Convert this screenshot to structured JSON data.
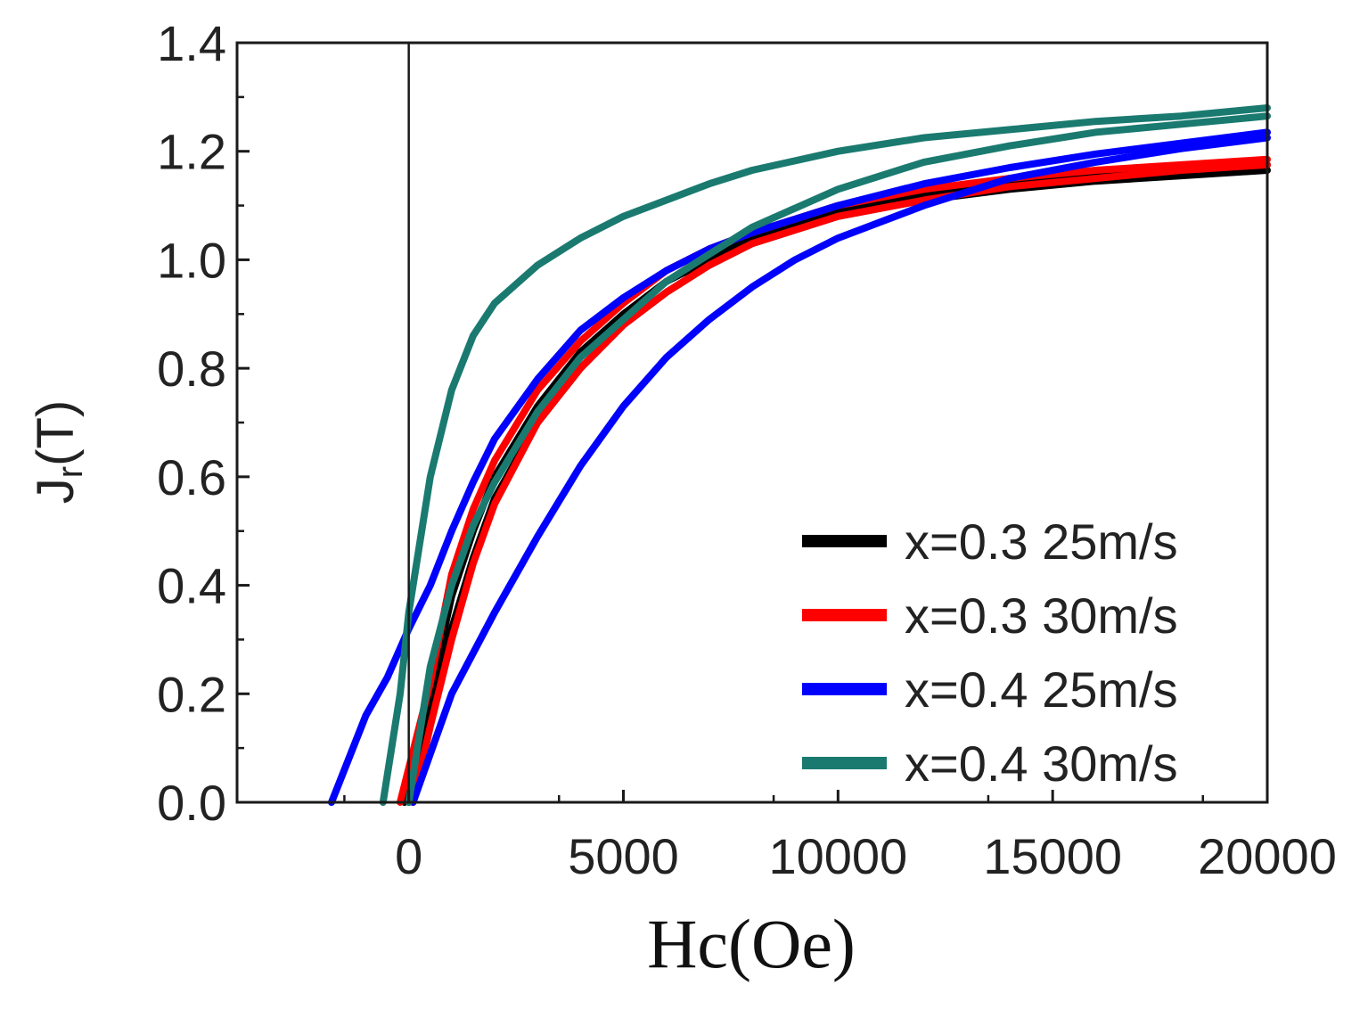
{
  "chart_data": {
    "type": "line",
    "title": "",
    "xlabel": "Hc(Oe)",
    "ylabel_main": "J",
    "ylabel_sub": "r",
    "ylabel_tail": "(T)",
    "xlim": [
      -4000,
      20000
    ],
    "ylim": [
      0,
      1.4
    ],
    "x_ticks": [
      0,
      5000,
      10000,
      15000,
      20000
    ],
    "x_tick_labels": [
      "0",
      "5000",
      "10000",
      "15000",
      "20000"
    ],
    "y_ticks": [
      0.0,
      0.2,
      0.4,
      0.6,
      0.8,
      1.0,
      1.2,
      1.4
    ],
    "y_tick_labels": [
      "0.0",
      "0.2",
      "0.4",
      "0.6",
      "0.8",
      "1.0",
      "1.2",
      "1.4"
    ],
    "grid": false,
    "legend_position": "bottom-right",
    "series": [
      {
        "name": "x=0.3 25m/s",
        "color": "#000000",
        "curves": [
          {
            "x": [
              0,
              500,
              1000,
              1500,
              2000,
              3000,
              4000,
              5000,
              6000,
              7000,
              8000,
              10000,
              12000,
              14000,
              16000,
              18000,
              20000
            ],
            "y": [
              0.0,
              0.15,
              0.32,
              0.45,
              0.56,
              0.7,
              0.8,
              0.88,
              0.94,
              0.99,
              1.03,
              1.08,
              1.11,
              1.13,
              1.145,
              1.155,
              1.165
            ]
          },
          {
            "x": [
              -100,
              500,
              1000,
              1500,
              2000,
              3000,
              4000,
              5000,
              6000,
              7000,
              8000,
              10000,
              12000,
              14000,
              16000,
              18000,
              20000
            ],
            "y": [
              0.0,
              0.2,
              0.38,
              0.5,
              0.6,
              0.73,
              0.83,
              0.9,
              0.96,
              1.0,
              1.04,
              1.09,
              1.12,
              1.14,
              1.155,
              1.165,
              1.175
            ]
          }
        ]
      },
      {
        "name": "x=0.3 30m/s",
        "color": "#ff0000",
        "curves": [
          {
            "x": [
              -200,
              500,
              1000,
              1500,
              2000,
              3000,
              4000,
              5000,
              6000,
              7000,
              8000,
              10000,
              12000,
              14000,
              16000,
              18000,
              20000
            ],
            "y": [
              0.0,
              0.22,
              0.42,
              0.54,
              0.63,
              0.76,
              0.85,
              0.92,
              0.98,
              1.02,
              1.05,
              1.1,
              1.13,
              1.15,
              1.165,
              1.175,
              1.185
            ]
          },
          {
            "x": [
              100,
              500,
              1000,
              1500,
              2000,
              3000,
              4000,
              5000,
              6000,
              7000,
              8000,
              10000,
              12000,
              14000,
              16000,
              18000,
              20000
            ],
            "y": [
              0.0,
              0.14,
              0.3,
              0.44,
              0.55,
              0.7,
              0.8,
              0.88,
              0.94,
              0.99,
              1.03,
              1.08,
              1.11,
              1.135,
              1.15,
              1.165,
              1.175
            ]
          }
        ]
      },
      {
        "name": "x=0.4 25m/s",
        "color": "#0000ff",
        "curves": [
          {
            "x": [
              -1800,
              -1000,
              -500,
              0,
              500,
              1000,
              1500,
              2000,
              3000,
              4000,
              5000,
              6000,
              7000,
              8000,
              10000,
              12000,
              14000,
              16000,
              18000,
              20000
            ],
            "y": [
              0.0,
              0.16,
              0.23,
              0.32,
              0.4,
              0.5,
              0.59,
              0.67,
              0.78,
              0.87,
              0.93,
              0.98,
              1.02,
              1.05,
              1.1,
              1.14,
              1.17,
              1.195,
              1.215,
              1.235
            ]
          },
          {
            "x": [
              100,
              1000,
              2000,
              3000,
              4000,
              5000,
              6000,
              7000,
              8000,
              9000,
              10000,
              12000,
              14000,
              16000,
              18000,
              20000
            ],
            "y": [
              0.0,
              0.2,
              0.35,
              0.49,
              0.62,
              0.73,
              0.82,
              0.89,
              0.95,
              1.0,
              1.04,
              1.1,
              1.15,
              1.18,
              1.205,
              1.225
            ]
          }
        ]
      },
      {
        "name": "x=0.4 30m/s",
        "color": "#1a7a70",
        "curves": [
          {
            "x": [
              -600,
              -200,
              0,
              500,
              1000,
              1500,
              2000,
              3000,
              4000,
              5000,
              6000,
              7000,
              8000,
              10000,
              12000,
              14000,
              16000,
              18000,
              20000
            ],
            "y": [
              0.0,
              0.2,
              0.35,
              0.6,
              0.76,
              0.86,
              0.92,
              0.99,
              1.04,
              1.08,
              1.11,
              1.14,
              1.165,
              1.2,
              1.225,
              1.24,
              1.255,
              1.265,
              1.28
            ]
          },
          {
            "x": [
              0,
              500,
              1000,
              1500,
              2000,
              3000,
              4000,
              5000,
              6000,
              7000,
              8000,
              10000,
              12000,
              14000,
              16000,
              18000,
              20000
            ],
            "y": [
              0.0,
              0.25,
              0.4,
              0.51,
              0.59,
              0.72,
              0.82,
              0.89,
              0.96,
              1.01,
              1.06,
              1.13,
              1.18,
              1.21,
              1.235,
              1.25,
              1.265
            ]
          }
        ]
      }
    ]
  }
}
